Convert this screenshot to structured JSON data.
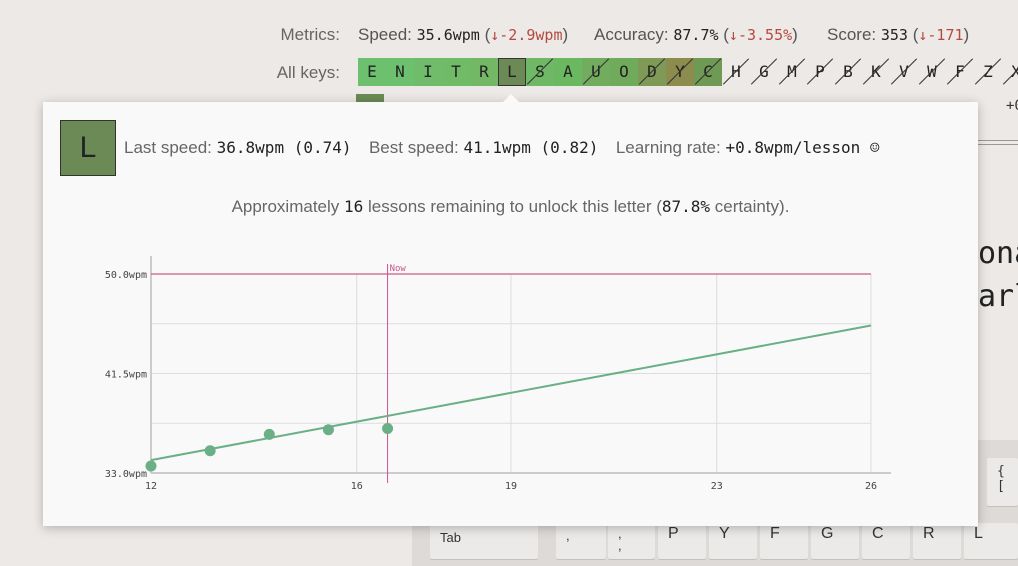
{
  "metrics": {
    "label": "Metrics:",
    "speed_label": "Speed:",
    "speed_value": "35.6wpm",
    "speed_delta": "↓-2.9wpm",
    "accuracy_label": "Accuracy:",
    "accuracy_value": "87.7%",
    "accuracy_delta": "↓-3.55%",
    "score_label": "Score:",
    "score_value": "353",
    "score_delta": "↓-171",
    "delta_color": "#b5493f"
  },
  "all_keys": {
    "label": "All keys:",
    "keys": [
      {
        "letter": "E",
        "color": "#6dc06d",
        "slashed": false,
        "selected": false
      },
      {
        "letter": "N",
        "color": "#6dc06d",
        "slashed": false,
        "selected": false
      },
      {
        "letter": "I",
        "color": "#6fbd6a",
        "slashed": false,
        "selected": false
      },
      {
        "letter": "T",
        "color": "#70bb68",
        "slashed": false,
        "selected": false
      },
      {
        "letter": "R",
        "color": "#73b864",
        "slashed": false,
        "selected": false
      },
      {
        "letter": "L",
        "color": "#6b8a55",
        "slashed": false,
        "selected": true
      },
      {
        "letter": "S",
        "color": "#6fb866",
        "slashed": true,
        "selected": false
      },
      {
        "letter": "A",
        "color": "#6ab860",
        "slashed": false,
        "selected": false
      },
      {
        "letter": "U",
        "color": "#72ac5e",
        "slashed": true,
        "selected": false
      },
      {
        "letter": "O",
        "color": "#6fab5a",
        "slashed": false,
        "selected": false
      },
      {
        "letter": "D",
        "color": "#7e9a56",
        "slashed": true,
        "selected": false
      },
      {
        "letter": "Y",
        "color": "#8b8c4e",
        "slashed": true,
        "selected": false
      },
      {
        "letter": "C",
        "color": "#6f9a55",
        "slashed": true,
        "selected": false
      },
      {
        "letter": "H",
        "color": "transparent",
        "slashed": true,
        "selected": false
      },
      {
        "letter": "G",
        "color": "transparent",
        "slashed": true,
        "selected": false
      },
      {
        "letter": "M",
        "color": "transparent",
        "slashed": true,
        "selected": false
      },
      {
        "letter": "P",
        "color": "transparent",
        "slashed": true,
        "selected": false
      },
      {
        "letter": "B",
        "color": "transparent",
        "slashed": true,
        "selected": false
      },
      {
        "letter": "K",
        "color": "transparent",
        "slashed": true,
        "selected": false
      },
      {
        "letter": "V",
        "color": "transparent",
        "slashed": true,
        "selected": false
      },
      {
        "letter": "W",
        "color": "transparent",
        "slashed": true,
        "selected": false
      },
      {
        "letter": "F",
        "color": "transparent",
        "slashed": true,
        "selected": false
      },
      {
        "letter": "Z",
        "color": "transparent",
        "slashed": true,
        "selected": false
      },
      {
        "letter": "X",
        "color": "transparent",
        "slashed": true,
        "selected": false
      }
    ]
  },
  "background": {
    "current_tail": "+0.8w",
    "text_line_1": "ona",
    "text_line_2": "arl"
  },
  "keyboard": {
    "keys": [
      "{ [",
      "Tab",
      ",",
      ", ,",
      ". .",
      "P",
      "Y",
      "F",
      "G",
      "C",
      "R",
      "L"
    ]
  },
  "popup": {
    "letter": "L",
    "last_speed_label": "Last speed:",
    "last_speed_value": "36.8wpm (0.74)",
    "best_speed_label": "Best speed:",
    "best_speed_value": "41.1wpm (0.82)",
    "learning_rate_label": "Learning rate:",
    "learning_rate_value": "+0.8wpm/lesson ☺",
    "remaining_prefix": "Approximately",
    "remaining_count": "16",
    "remaining_middle": "lessons remaining to unlock this letter (",
    "remaining_certainty": "87.8%",
    "remaining_suffix": "certainty)."
  },
  "chart_data": {
    "type": "scatter",
    "x_ticks": [
      "12",
      "16",
      "19",
      "23",
      "26"
    ],
    "y_ticks": [
      "50.0wpm",
      "41.5wpm",
      "33.0wpm"
    ],
    "xlim": [
      12,
      26
    ],
    "ylim": [
      33.0,
      50.0
    ],
    "now_label": "Now",
    "now_x": 16.6,
    "target": 50.0,
    "points": [
      {
        "x": 12,
        "y": 33.6
      },
      {
        "x": 13.15,
        "y": 34.9
      },
      {
        "x": 14.3,
        "y": 36.3
      },
      {
        "x": 15.45,
        "y": 36.7
      },
      {
        "x": 16.6,
        "y": 36.8
      }
    ],
    "trend": [
      {
        "x": 12,
        "y": 34.1
      },
      {
        "x": 26,
        "y": 45.6
      }
    ],
    "colors": {
      "points": "#6aaf86",
      "trend": "#6aaf86",
      "target": "#d05a86",
      "now": "#c9548a",
      "grid": "#dddddd",
      "axis": "#cccccc"
    }
  }
}
